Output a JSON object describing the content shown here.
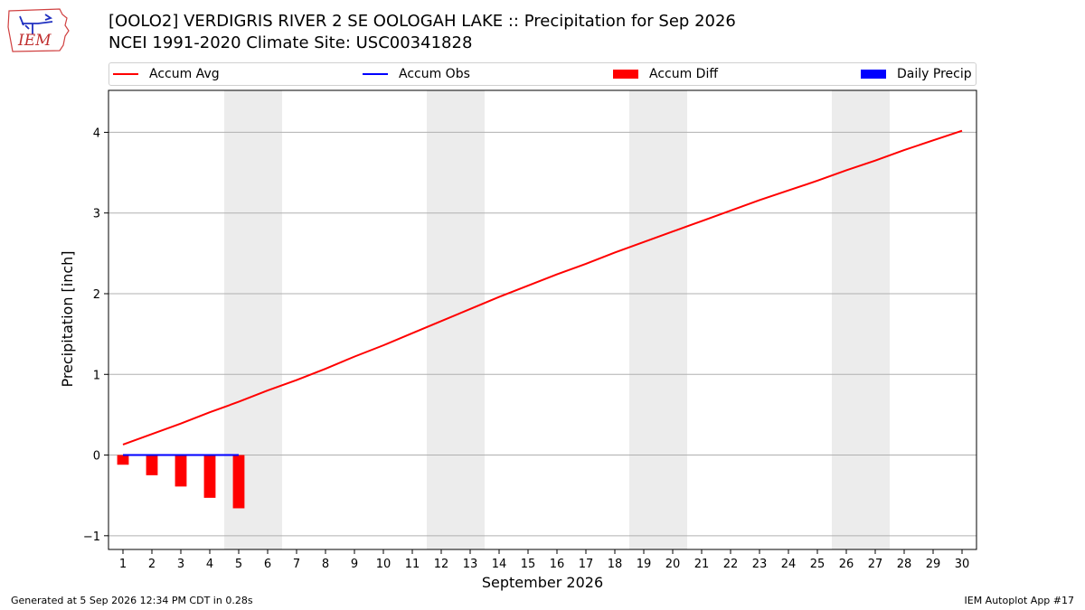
{
  "header": {
    "title": "[OOLO2] VERDIGRIS RIVER 2 SE OOLOGAH LAKE :: Precipitation for Sep 2026",
    "subtitle": "NCEI 1991-2020 Climate Site: USC00341828",
    "logo_text": "IEM"
  },
  "legend": {
    "accum_avg": "Accum Avg",
    "accum_obs": "Accum Obs",
    "accum_diff": "Accum Diff",
    "daily_precip": "Daily Precip"
  },
  "footer": {
    "generated": "Generated at 5 Sep 2026 12:34 PM CDT in 0.28s",
    "app": "IEM Autoplot App #17"
  },
  "colors": {
    "accum_avg": "#ff0000",
    "accum_obs": "#0000ff",
    "accum_diff": "#ff0000",
    "daily_precip": "#0000ff",
    "weekend_shade": "#ececec",
    "grid": "#b0b0b0"
  },
  "chart_data": {
    "type": "line",
    "xlabel": "September 2026",
    "ylabel": "Precipitation [inch]",
    "xlim": [
      0.5,
      30.5
    ],
    "ylim": [
      -1.17,
      4.52
    ],
    "yticks": [
      -1,
      0,
      1,
      2,
      3,
      4
    ],
    "xticks": [
      1,
      2,
      3,
      4,
      5,
      6,
      7,
      8,
      9,
      10,
      11,
      12,
      13,
      14,
      15,
      16,
      17,
      18,
      19,
      20,
      21,
      22,
      23,
      24,
      25,
      26,
      27,
      28,
      29,
      30
    ],
    "grid": "horizontal",
    "legend_position": "top",
    "weekend_shading": [
      [
        4.5,
        6.5
      ],
      [
        11.5,
        13.5
      ],
      [
        18.5,
        20.5
      ],
      [
        25.5,
        27.5
      ]
    ],
    "series": [
      {
        "name": "Accum Avg",
        "type": "line",
        "x": [
          1,
          2,
          3,
          4,
          5,
          6,
          7,
          8,
          9,
          10,
          11,
          12,
          13,
          14,
          15,
          16,
          17,
          18,
          19,
          20,
          21,
          22,
          23,
          24,
          25,
          26,
          27,
          28,
          29,
          30
        ],
        "values": [
          0.13,
          0.26,
          0.39,
          0.53,
          0.66,
          0.8,
          0.93,
          1.07,
          1.22,
          1.36,
          1.51,
          1.66,
          1.81,
          1.96,
          2.1,
          2.24,
          2.37,
          2.51,
          2.64,
          2.77,
          2.9,
          3.03,
          3.16,
          3.28,
          3.4,
          3.53,
          3.65,
          3.78,
          3.9,
          4.02
        ]
      },
      {
        "name": "Accum Obs",
        "type": "line",
        "x": [
          1,
          2,
          3,
          4,
          5
        ],
        "values": [
          0,
          0,
          0,
          0,
          0
        ]
      },
      {
        "name": "Accum Diff",
        "type": "bar",
        "x": [
          1,
          2,
          3,
          4,
          5
        ],
        "values": [
          -0.12,
          -0.25,
          -0.39,
          -0.53,
          -0.66
        ]
      },
      {
        "name": "Daily Precip",
        "type": "bar",
        "x": [
          1,
          2,
          3,
          4,
          5
        ],
        "values": [
          0,
          0,
          0,
          0,
          0
        ]
      }
    ]
  }
}
